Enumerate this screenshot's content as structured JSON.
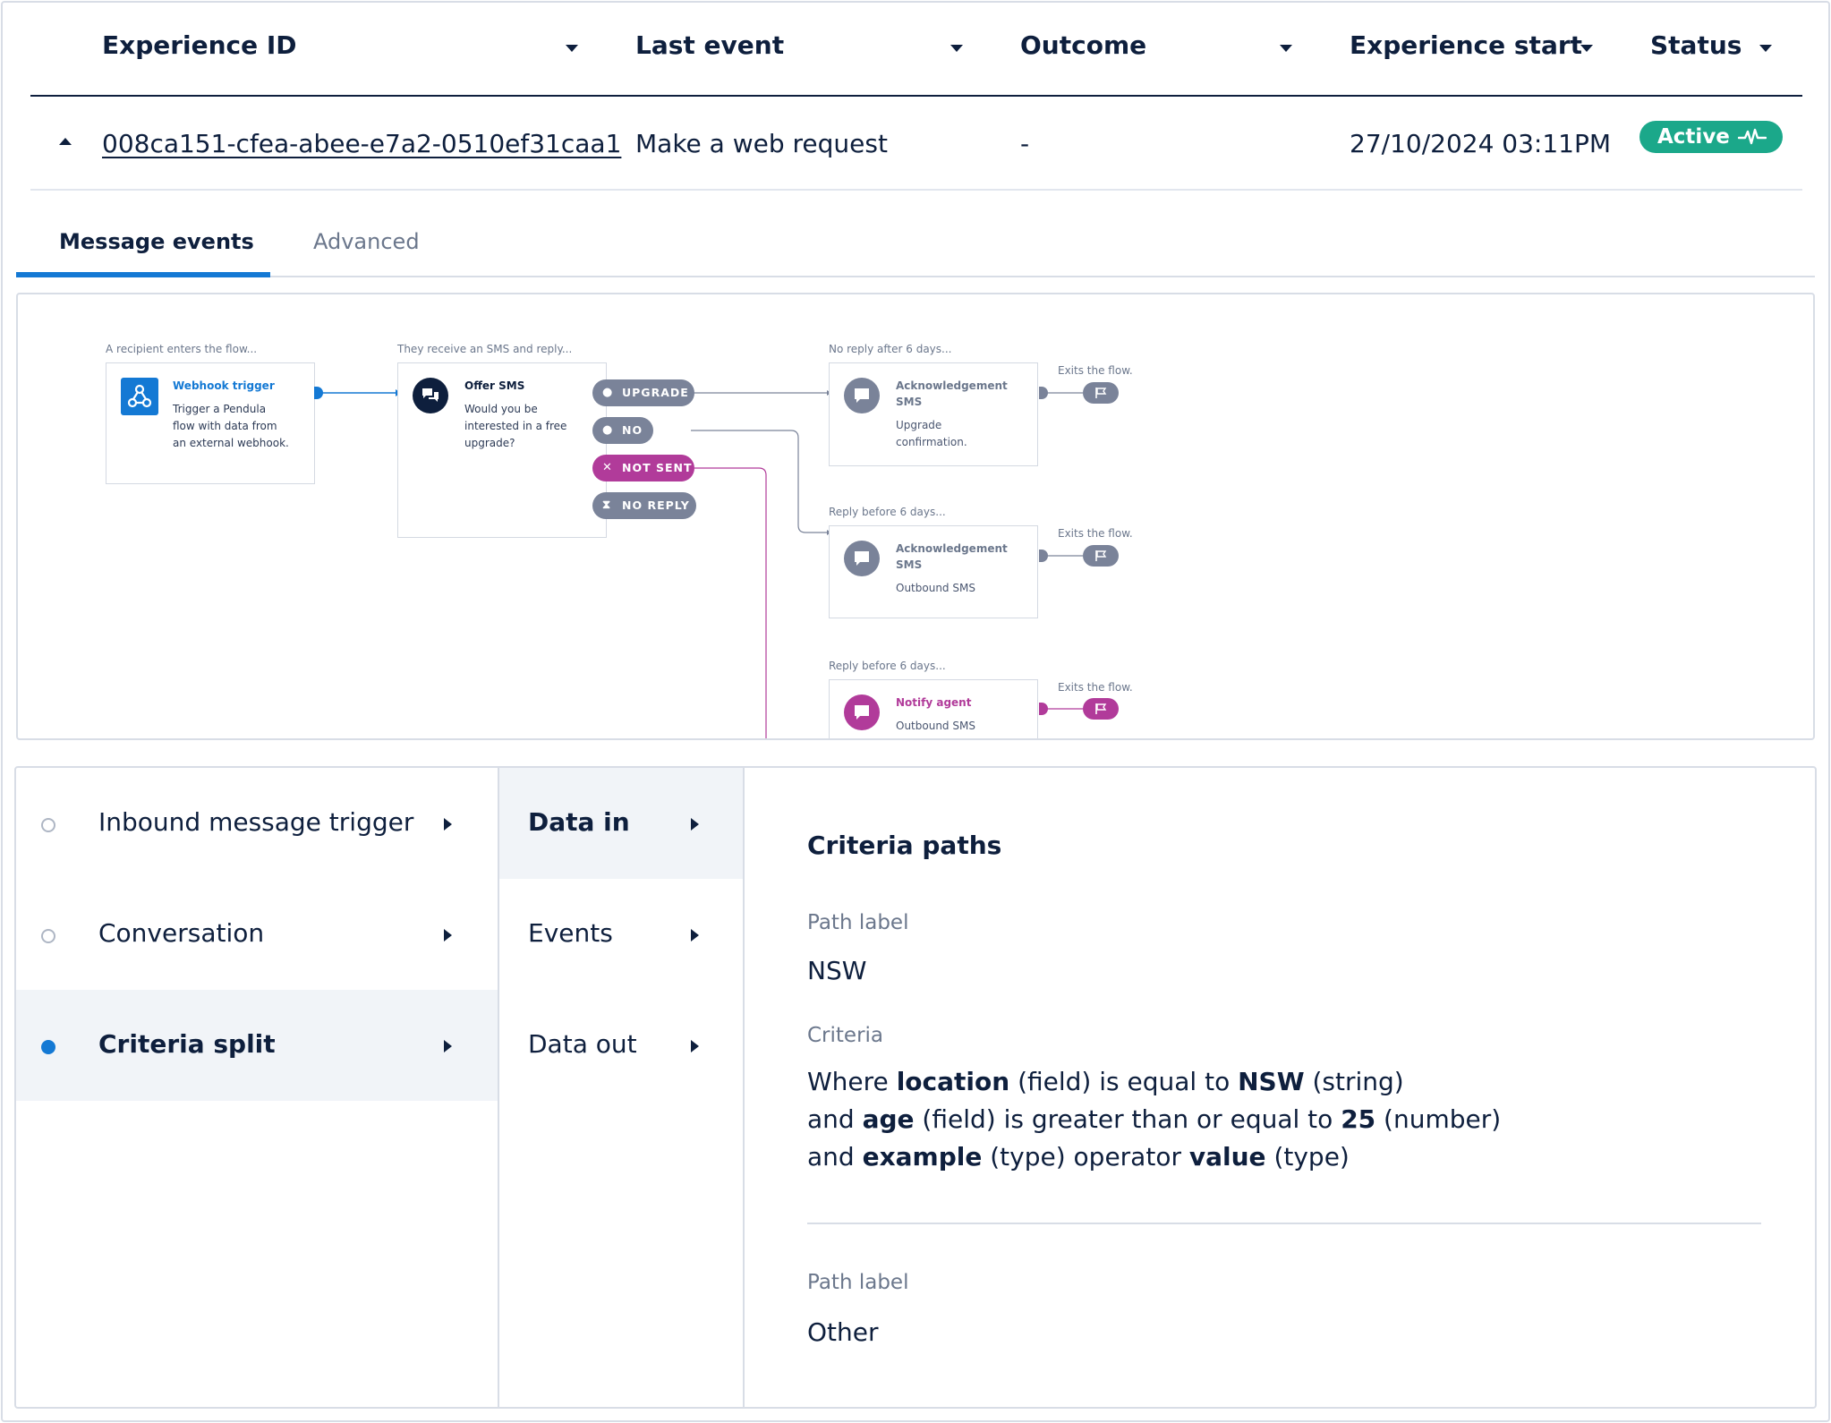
{
  "table": {
    "headers": {
      "experience_id": "Experience ID",
      "last_event": "Last event",
      "outcome": "Outcome",
      "experience_start": "Experience start",
      "status": "Status"
    },
    "row": {
      "experience_id": "008ca151-cfea-abee-e7a2-0510ef31caa1",
      "last_event": "Make a web request",
      "outcome": "-",
      "experience_start": "27/10/2024 03:11PM",
      "status": "Active"
    }
  },
  "tabs": {
    "message_events": "Message events",
    "advanced": "Advanced"
  },
  "diagram": {
    "captions": {
      "trigger": "A recipient enters the flow...",
      "sms": "They receive an SMS and reply...",
      "no_reply": "No reply after 6 days...",
      "reply1": "Reply before 6 days...",
      "reply2": "Reply before 6 days...",
      "exit1": "Exits the flow.",
      "exit2": "Exits the flow.",
      "exit3": "Exits the flow."
    },
    "webhook": {
      "title": "Webhook trigger",
      "text": "Trigger a Pendula flow with data from an external webhook."
    },
    "offer_sms": {
      "title": "Offer SMS",
      "text": "Would you be interested in a free upgrade?"
    },
    "pills": {
      "upgrade": "UPGRADE",
      "no": "NO",
      "not_sent": "NOT SENT",
      "no_reply": "NO REPLY"
    },
    "ack1": {
      "title": "Acknowledgement SMS",
      "text": "Upgrade confirmation."
    },
    "ack2": {
      "title": "Acknowledgement SMS",
      "text": "Outbound SMS"
    },
    "notify": {
      "title": "Notify agent",
      "text": "Outbound SMS"
    },
    "colors": {
      "blue": "#1479d4",
      "gray": "#7a8399",
      "purple": "#b13b9a",
      "dark": "#0e1f3d",
      "green": "#1ba88a"
    }
  },
  "steps": [
    {
      "label": "Inbound message trigger",
      "selected": false
    },
    {
      "label": "Conversation",
      "selected": false
    },
    {
      "label": "Criteria split",
      "selected": true
    }
  ],
  "substeps": [
    {
      "label": "Data in",
      "selected": true
    },
    {
      "label": "Events",
      "selected": false
    },
    {
      "label": "Data out",
      "selected": false
    }
  ],
  "details": {
    "heading": "Criteria paths",
    "path1_label_caption": "Path label",
    "path1_label": "NSW",
    "criteria_caption": "Criteria",
    "criteria": {
      "l1_w1": "Where ",
      "l1_b1": "location",
      "l1_w2": " (field) is equal to ",
      "l1_b2": "NSW",
      "l1_w3": " (string)",
      "l2_w1": "and ",
      "l2_b1": "age",
      "l2_w2": " (field) is greater than or equal to ",
      "l2_b2": "25",
      "l2_w3": " (number)",
      "l3_w1": "and ",
      "l3_b1": "example",
      "l3_w2": " (type) operator ",
      "l3_b2": "value",
      "l3_w3": " (type)"
    },
    "path2_label_caption": "Path label",
    "path2_label": "Other"
  }
}
